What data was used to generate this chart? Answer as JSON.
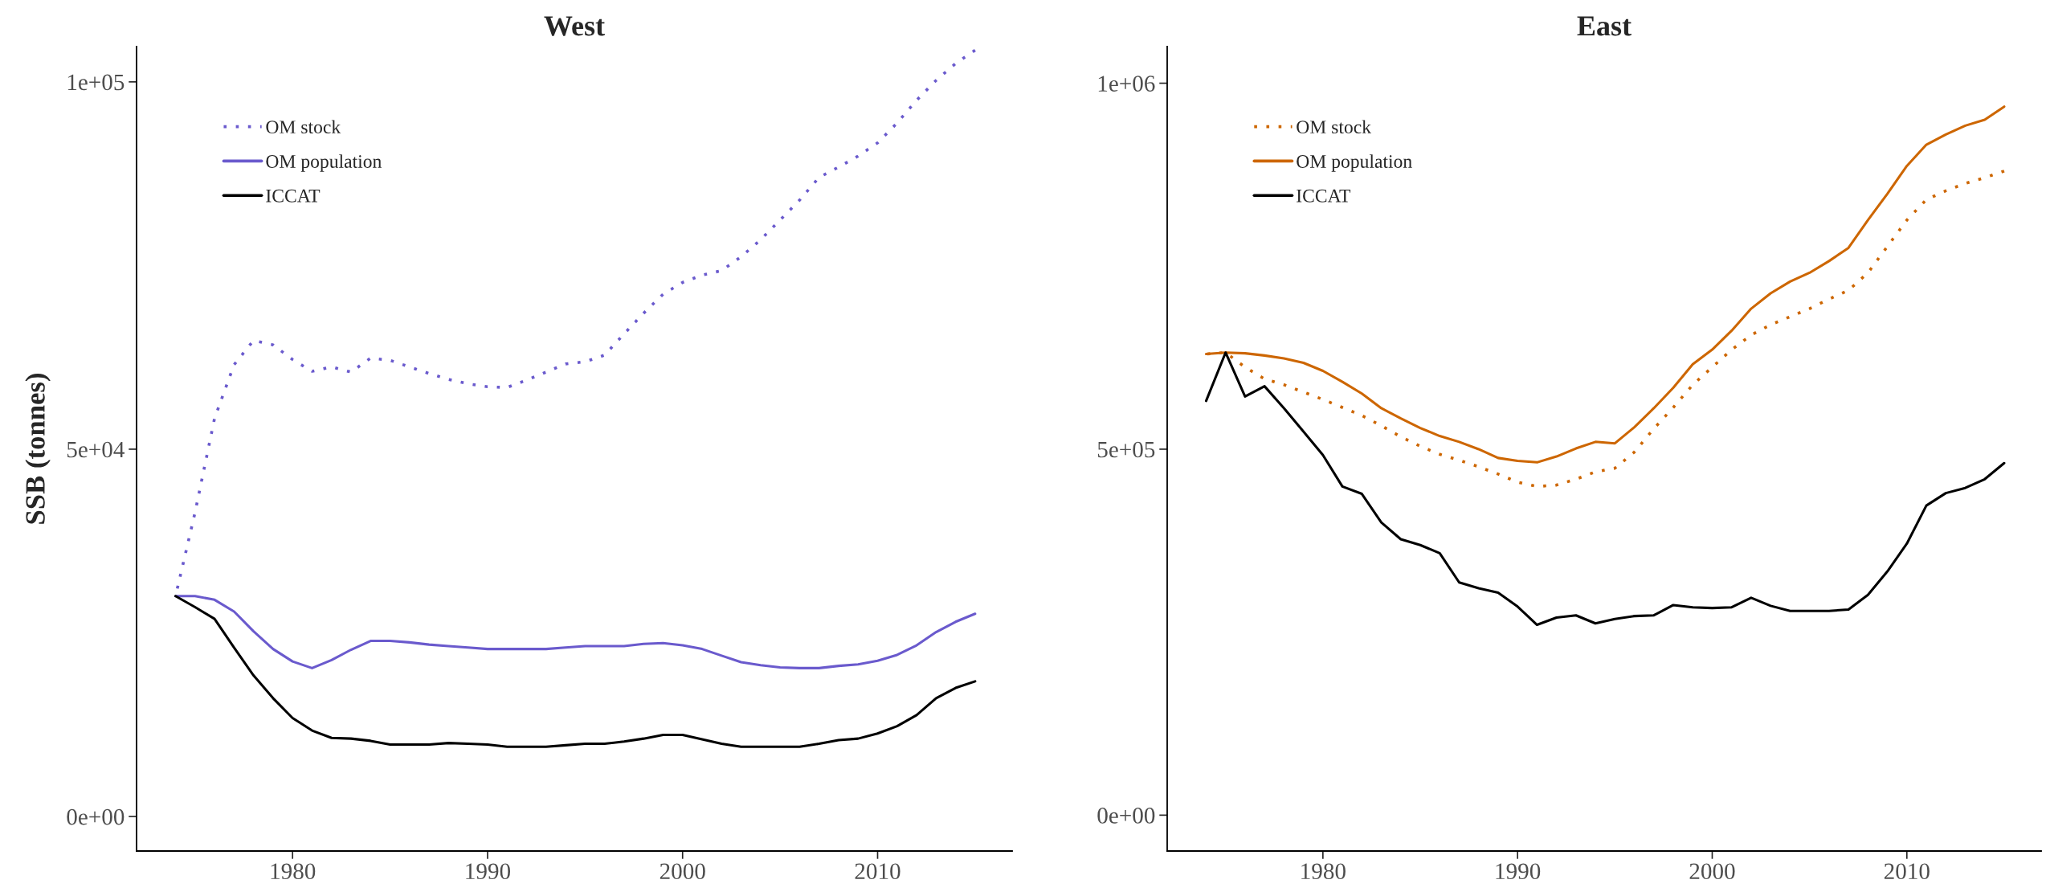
{
  "chart_data": [
    {
      "type": "line",
      "title": "West",
      "ylabel": "SSB (tonnes)",
      "xlim": [
        1972,
        2016.9
      ],
      "ylim": [
        -4700,
        104800
      ],
      "xticks": [
        1980,
        1990,
        2000,
        2010
      ],
      "yticks": [
        {
          "value": 0,
          "label": "0e+00"
        },
        {
          "value": 50000,
          "label": "5e+04"
        },
        {
          "value": 100000,
          "label": "1e+05"
        }
      ],
      "grid": false,
      "legend": "top left",
      "x": [
        1974,
        1975,
        1976,
        1977,
        1978,
        1979,
        1980,
        1981,
        1982,
        1983,
        1984,
        1985,
        1986,
        1987,
        1988,
        1989,
        1990,
        1991,
        1992,
        1993,
        1994,
        1995,
        1996,
        1997,
        1998,
        1999,
        2000,
        2001,
        2002,
        2003,
        2004,
        2005,
        2006,
        2007,
        2008,
        2009,
        2010,
        2011,
        2012,
        2013,
        2014,
        2015
      ],
      "series": [
        {
          "name": "OM stock",
          "color": "#6a5acd",
          "line_style": "dotted",
          "values": [
            30000,
            41400,
            54200,
            61500,
            64800,
            64200,
            62200,
            60600,
            61200,
            60500,
            62400,
            62100,
            61200,
            60300,
            59500,
            58900,
            58500,
            58400,
            59400,
            60500,
            61600,
            61900,
            62800,
            65700,
            68500,
            71100,
            72700,
            73700,
            74300,
            76200,
            78500,
            81200,
            83900,
            87000,
            88400,
            89900,
            91700,
            94400,
            97500,
            100200,
            102500,
            104300
          ]
        },
        {
          "name": "OM population",
          "color": "#6a5acd",
          "line_style": "solid",
          "values": [
            30000,
            30000,
            29500,
            27900,
            25200,
            22800,
            21100,
            20200,
            21300,
            22700,
            23900,
            23900,
            23700,
            23400,
            23200,
            23000,
            22800,
            22800,
            22800,
            22800,
            23000,
            23200,
            23200,
            23200,
            23500,
            23600,
            23300,
            22800,
            21900,
            21000,
            20600,
            20300,
            20200,
            20200,
            20500,
            20700,
            21200,
            22000,
            23300,
            25100,
            26500,
            27600
          ]
        },
        {
          "name": "ICCAT",
          "color": "#000000",
          "line_style": "solid",
          "values": [
            30000,
            28500,
            26900,
            23000,
            19200,
            16100,
            13400,
            11700,
            10700,
            10600,
            10300,
            9800,
            9800,
            9800,
            10000,
            9900,
            9800,
            9500,
            9500,
            9500,
            9700,
            9900,
            9900,
            10200,
            10600,
            11100,
            11100,
            10500,
            9900,
            9500,
            9500,
            9500,
            9500,
            9900,
            10400,
            10600,
            11300,
            12300,
            13800,
            16100,
            17500,
            18400
          ]
        }
      ]
    },
    {
      "type": "line",
      "title": "East",
      "xlim": [
        1972,
        2016.9
      ],
      "ylim": [
        -49000,
        1050000
      ],
      "xticks": [
        1980,
        1990,
        2000,
        2010
      ],
      "yticks": [
        {
          "value": 0,
          "label": "0e+00"
        },
        {
          "value": 500000,
          "label": "5e+05"
        },
        {
          "value": 1000000,
          "label": "1e+06"
        }
      ],
      "grid": false,
      "legend": "top left",
      "x": [
        1974,
        1975,
        1976,
        1977,
        1978,
        1979,
        1980,
        1981,
        1982,
        1983,
        1984,
        1985,
        1986,
        1987,
        1988,
        1989,
        1990,
        1991,
        1992,
        1993,
        1994,
        1995,
        1996,
        1997,
        1998,
        1999,
        2000,
        2001,
        2002,
        2003,
        2004,
        2005,
        2006,
        2007,
        2008,
        2009,
        2010,
        2011,
        2012,
        2013,
        2014,
        2015
      ],
      "series": [
        {
          "name": "OM stock",
          "color": "#cd6600",
          "line_style": "dotted",
          "values": [
            630000,
            632000,
            612000,
            596000,
            588000,
            578000,
            568000,
            557000,
            546000,
            532000,
            517000,
            504000,
            493000,
            485000,
            476000,
            466000,
            455000,
            449000,
            451000,
            459000,
            469000,
            474000,
            496000,
            528000,
            557000,
            588000,
            612000,
            636000,
            656000,
            670000,
            681000,
            692000,
            705000,
            717000,
            741000,
            777000,
            813000,
            841000,
            853000,
            863000,
            871000,
            880000
          ]
        },
        {
          "name": "OM population",
          "color": "#cd6600",
          "line_style": "solid",
          "values": [
            630000,
            632000,
            631000,
            628000,
            624000,
            618000,
            607000,
            592000,
            576000,
            556000,
            542000,
            529000,
            518000,
            510000,
            500000,
            488000,
            484000,
            482000,
            490000,
            501000,
            510000,
            508000,
            530000,
            556000,
            584000,
            616000,
            636000,
            662000,
            692000,
            713000,
            729000,
            741000,
            757000,
            775000,
            813000,
            849000,
            887000,
            916000,
            930000,
            942000,
            950000,
            968000
          ]
        },
        {
          "name": "ICCAT",
          "color": "#000000",
          "line_style": "solid",
          "values": [
            566000,
            632000,
            572000,
            586000,
            556000,
            524000,
            492000,
            449000,
            439000,
            400000,
            377000,
            369000,
            358000,
            318000,
            310000,
            304000,
            285000,
            260000,
            270000,
            273000,
            262000,
            268000,
            272000,
            273000,
            287000,
            284000,
            283000,
            284000,
            297000,
            286000,
            279000,
            279000,
            279000,
            281000,
            301000,
            333000,
            371000,
            423000,
            440000,
            447000,
            459000,
            481000
          ]
        }
      ]
    }
  ]
}
